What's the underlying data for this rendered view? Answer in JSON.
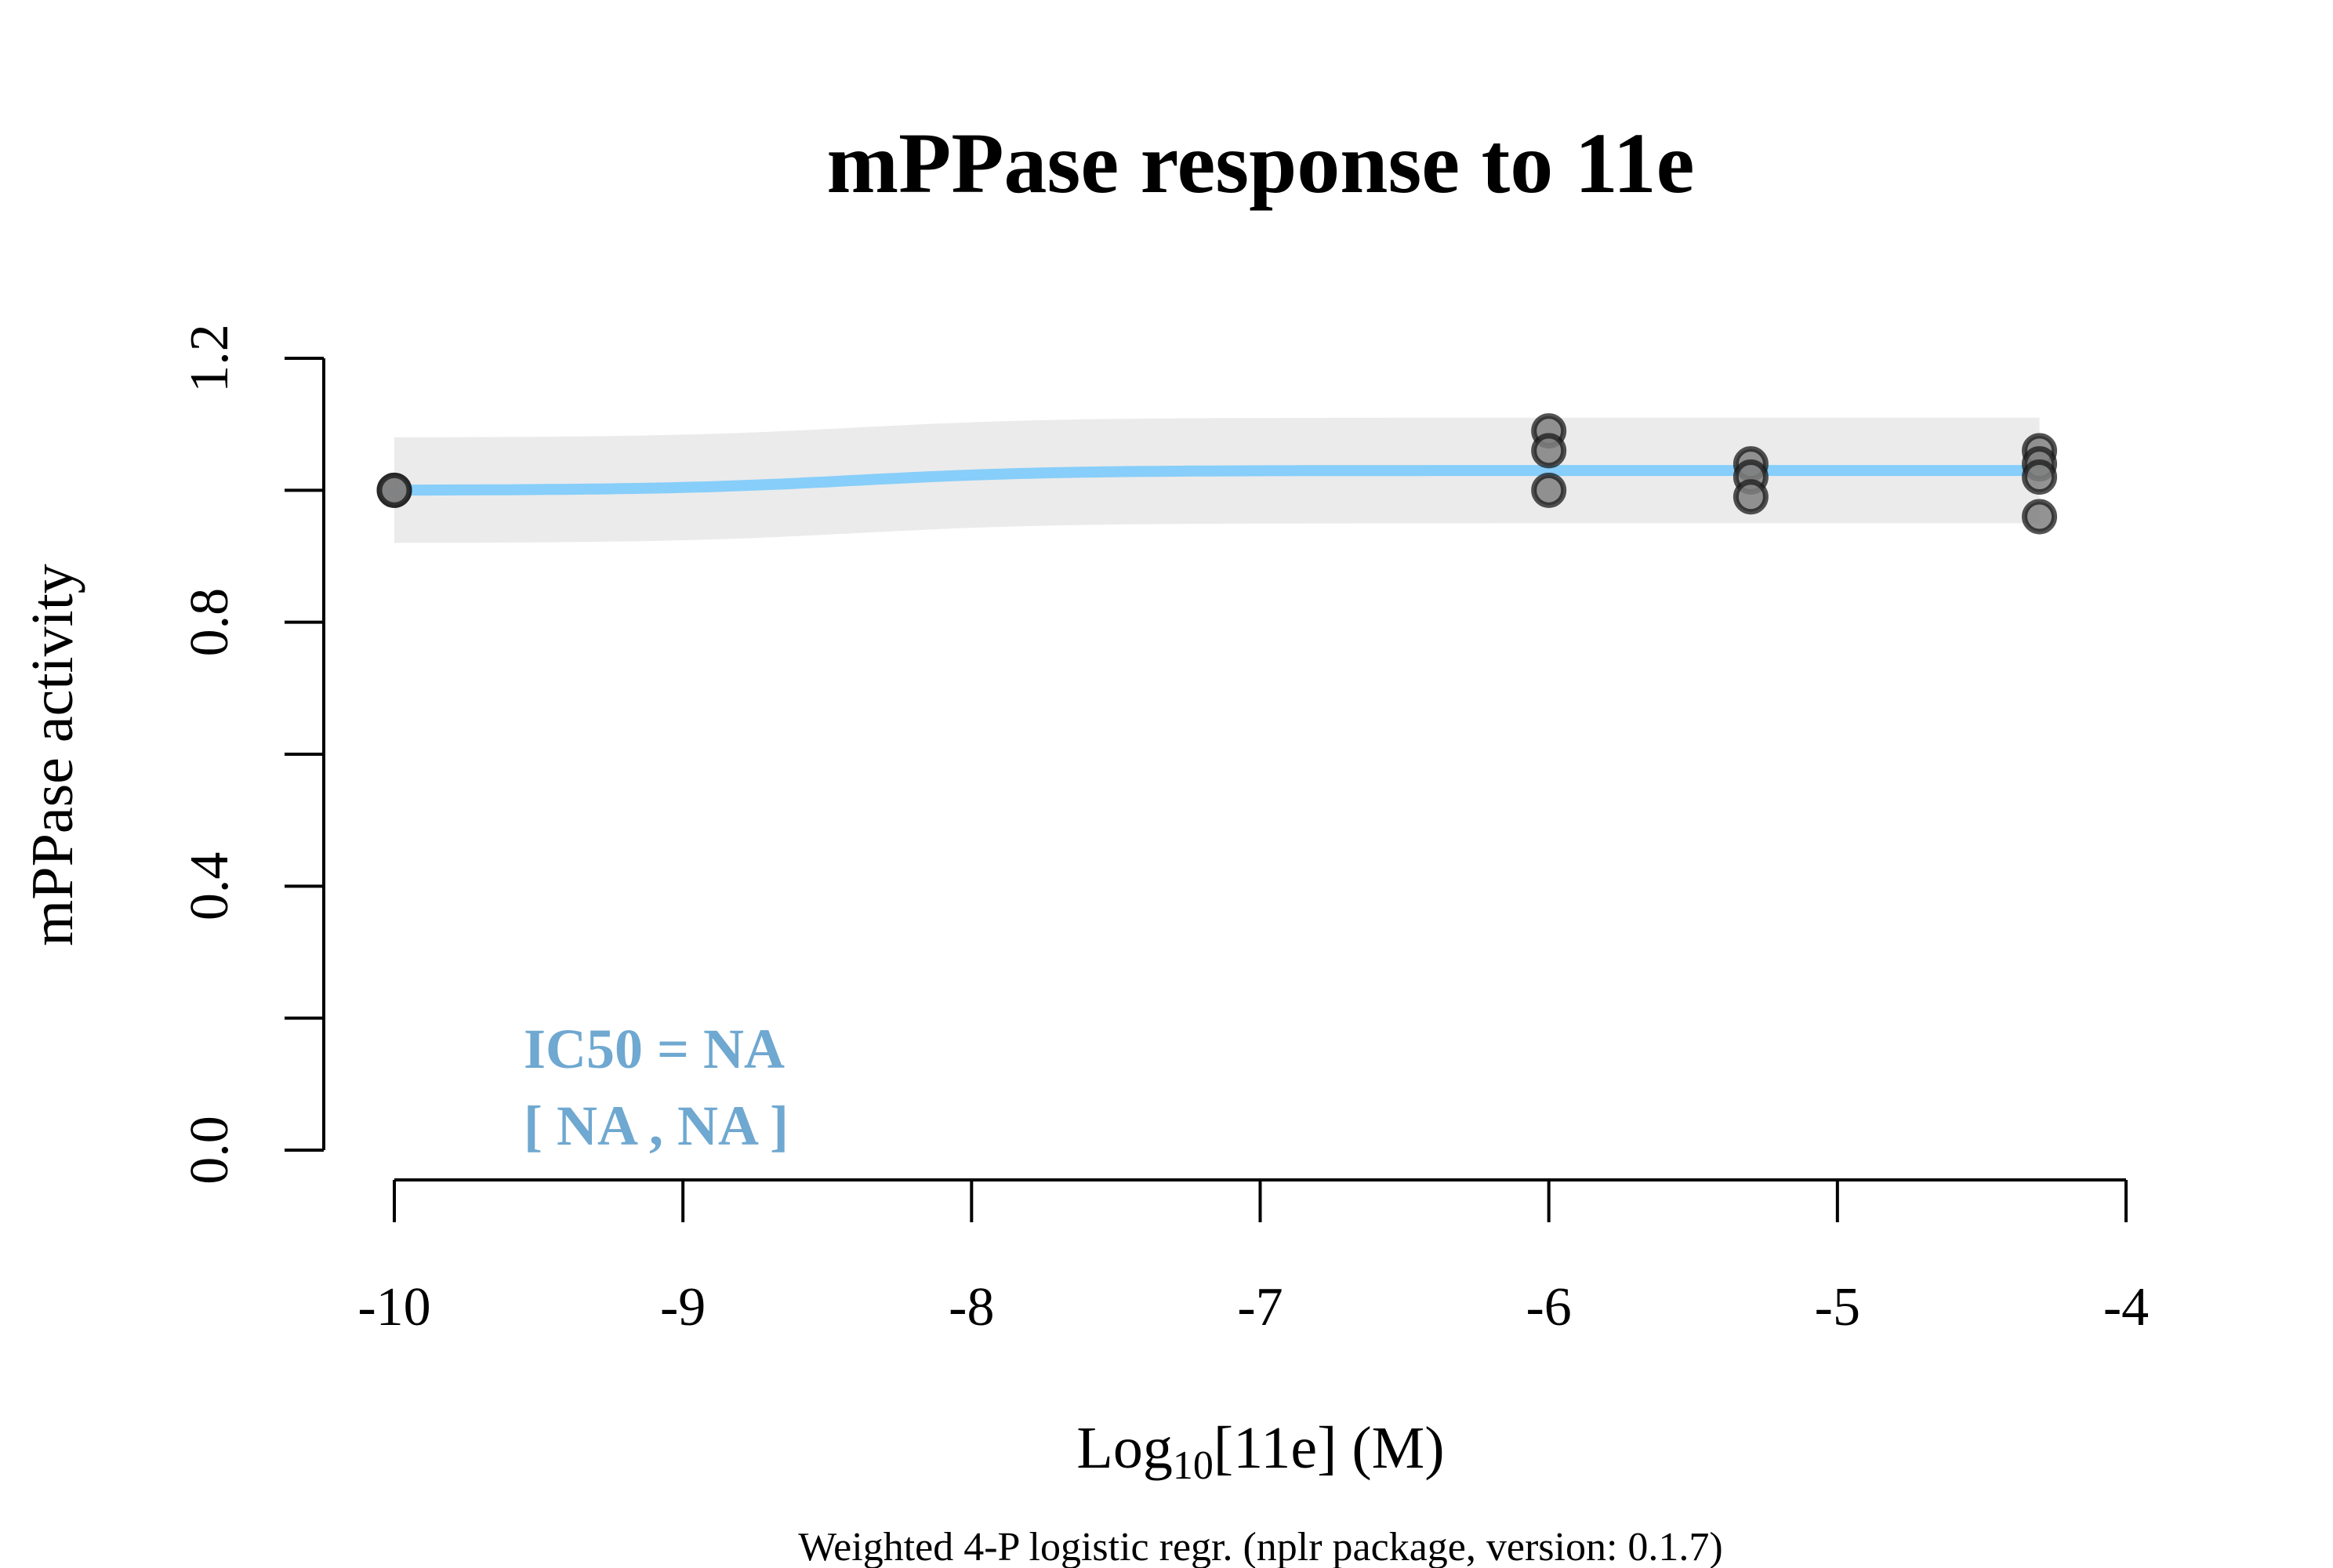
{
  "chart_data": {
    "type": "scatter",
    "title": "mPPase response to 11e",
    "xlabel": {
      "prefix": "Log",
      "subscript": "10",
      "suffix": "[11e] (M)"
    },
    "ylabel": "mPPase activity",
    "subtitle": "Weighted 4-P logistic regr. (nplr package, version: 0.1.7)",
    "xlim": [
      -10,
      -4
    ],
    "ylim": [
      0,
      1.2
    ],
    "x_ticks": [
      -10,
      -9,
      -8,
      -7,
      -6,
      -5,
      -4
    ],
    "x_tick_labels": [
      "-10",
      "-9",
      "-8",
      "-7",
      "-6",
      "-5",
      "-4"
    ],
    "y_ticks": [
      0,
      0.2,
      0.4,
      0.6,
      0.8,
      1.0,
      1.2
    ],
    "y_tick_labels": [
      "0.0",
      "",
      "0.4",
      "",
      "0.8",
      "",
      "1.2"
    ],
    "points": [
      {
        "x": -10,
        "y": 1.0
      },
      {
        "x": -10,
        "y": 1.0
      },
      {
        "x": -6,
        "y": 1.09
      },
      {
        "x": -6,
        "y": 1.06
      },
      {
        "x": -6,
        "y": 1.0
      },
      {
        "x": -5.3,
        "y": 1.04
      },
      {
        "x": -5.3,
        "y": 1.02
      },
      {
        "x": -5.3,
        "y": 0.99
      },
      {
        "x": -4.3,
        "y": 1.06
      },
      {
        "x": -4.3,
        "y": 1.04
      },
      {
        "x": -4.3,
        "y": 1.02
      },
      {
        "x": -4.3,
        "y": 0.96
      }
    ],
    "fit": {
      "bottom": 1.0,
      "top": 1.03,
      "inflection": -8.4,
      "slope": 3.0,
      "x_range": [
        -10,
        -4.3
      ],
      "band_halfwidth": 0.08,
      "color": "#87cefa",
      "band_color": "#ebebeb"
    },
    "point_stroke": "#1a1a1a",
    "point_fill": "#808080",
    "annotation": {
      "line1": "IC50 = NA",
      "line2": "[ NA , NA ]",
      "color": "#6fa8d0"
    }
  }
}
